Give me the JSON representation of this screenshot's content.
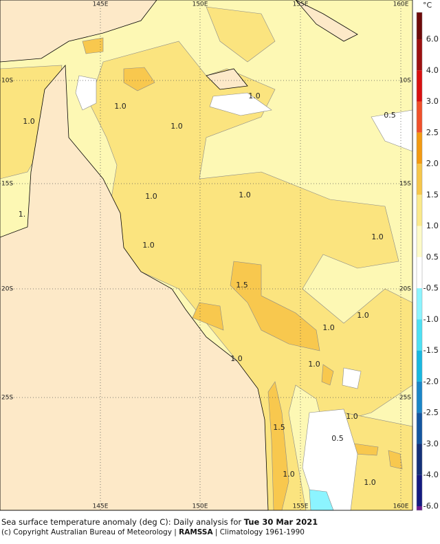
{
  "map": {
    "lon_labels": [
      "145E",
      "150E",
      "155E",
      "160E"
    ],
    "lat_labels": [
      "10S",
      "15S",
      "20S",
      "25S"
    ],
    "contour_labels": [
      "1.0",
      "1.0",
      "1.0",
      "1.0",
      "0.5",
      "1.0",
      "1.0",
      "1.",
      "1.0",
      "1.0",
      "1.5",
      "1.0",
      "1.0",
      "1.0",
      "1.0",
      "1.0",
      "1.5",
      "0.5",
      "1.0",
      "1.0"
    ],
    "colorbar": {
      "unit": "°C",
      "ticks": [
        "6.0",
        "4.0",
        "3.0",
        "2.5",
        "2.0",
        "1.5",
        "1.0",
        "0.5",
        "-0.5",
        "-1.0",
        "-1.5",
        "-2.0",
        "-2.5",
        "-3.0",
        "-4.0",
        "-6.0"
      ],
      "colors": [
        "#6e0a0a",
        "#9c1010",
        "#d81010",
        "#f0502a",
        "#f39a12",
        "#f6c64a",
        "#fbe98a",
        "#fdfbc8",
        "#ffffff",
        "#8cf4ff",
        "#4ee0f4",
        "#1ab8e0",
        "#1a86c8",
        "#1456a0",
        "#143078",
        "#141a80",
        "#6a1a90"
      ]
    }
  },
  "caption": {
    "line1": "Sea surface temperature anomaly (deg C): Daily analysis for ",
    "date": "Tue 30 Mar 2021",
    "line2a": "(c) Copyright Australian Bureau of Meteorology | ",
    "line2b": "RAMSSA",
    "line2c": " | Climatology 1961-1990"
  }
}
